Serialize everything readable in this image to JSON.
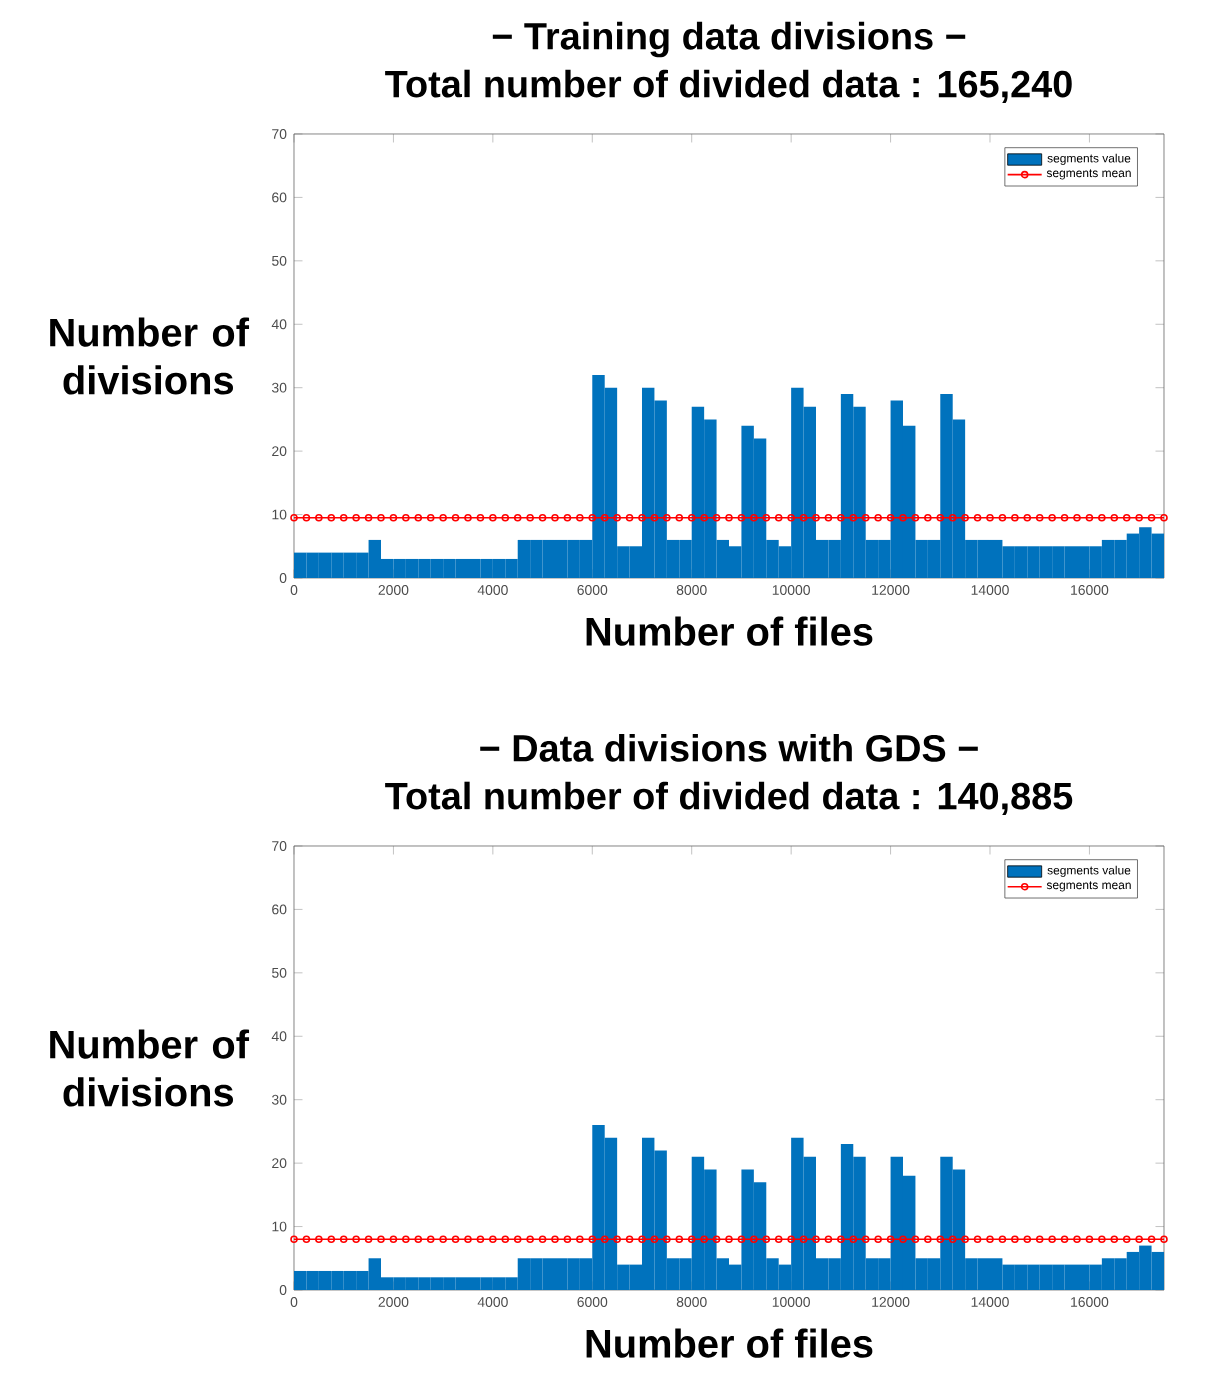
{
  "chart_data": [
    {
      "type": "bar",
      "title": "− Training data divisions −",
      "subtitle": "Total number of divided data : 165,240",
      "xlabel": "Number of files",
      "ylabel": "Number of divisions",
      "xlim": [
        0,
        17500
      ],
      "ylim": [
        0,
        70
      ],
      "xticks": [
        0,
        2000,
        4000,
        6000,
        8000,
        10000,
        12000,
        14000,
        16000
      ],
      "yticks": [
        0,
        10,
        20,
        30,
        40,
        50,
        60,
        70
      ],
      "legend": "top right",
      "series": [
        {
          "name": "segments value",
          "color": "#0072bd",
          "x": [
            125,
            375,
            625,
            875,
            1125,
            1375,
            1625,
            1875,
            2125,
            2375,
            2625,
            2875,
            3125,
            3375,
            3625,
            3875,
            4125,
            4375,
            4625,
            4875,
            5125,
            5375,
            5625,
            5875,
            6125,
            6375,
            6625,
            6875,
            7125,
            7375,
            7625,
            7875,
            8125,
            8375,
            8625,
            8875,
            9125,
            9375,
            9625,
            9875,
            10125,
            10375,
            10625,
            10875,
            11125,
            11375,
            11625,
            11875,
            12125,
            12375,
            12625,
            12875,
            13125,
            13375,
            13625,
            13875,
            14125,
            14375,
            14625,
            14875,
            15125,
            15375,
            15625,
            15875,
            16125,
            16375,
            16625,
            16875,
            17125,
            17375
          ],
          "values": [
            4,
            4,
            4,
            4,
            4,
            4,
            6,
            3,
            3,
            3,
            3,
            3,
            3,
            3,
            3,
            3,
            3,
            3,
            6,
            6,
            6,
            6,
            6,
            6,
            32,
            30,
            5,
            5,
            30,
            28,
            6,
            6,
            27,
            25,
            6,
            5,
            24,
            22,
            6,
            5,
            30,
            27,
            6,
            6,
            29,
            27,
            6,
            6,
            28,
            24,
            6,
            6,
            29,
            25,
            6,
            6,
            6,
            5,
            5,
            5,
            5,
            5,
            5,
            5,
            5,
            6,
            6,
            7,
            8,
            7
          ]
        },
        {
          "name": "segments mean",
          "type": "line",
          "color": "#ff0000",
          "marker": "circle",
          "x": [
            0,
            250,
            500,
            750,
            1000,
            1250,
            1500,
            1750,
            2000,
            2250,
            2500,
            2750,
            3000,
            3250,
            3500,
            3750,
            4000,
            4250,
            4500,
            4750,
            5000,
            5250,
            5500,
            5750,
            6000,
            6250,
            6500,
            6750,
            7000,
            7250,
            7500,
            7750,
            8000,
            8250,
            8500,
            8750,
            9000,
            9250,
            9500,
            9750,
            10000,
            10250,
            10500,
            10750,
            11000,
            11250,
            11500,
            11750,
            12000,
            12250,
            12500,
            12750,
            13000,
            13250,
            13500,
            13750,
            14000,
            14250,
            14500,
            14750,
            15000,
            15250,
            15500,
            15750,
            16000,
            16250,
            16500,
            16750,
            17000,
            17250,
            17500
          ],
          "values": [
            9.5,
            9.5,
            9.5,
            9.5,
            9.5,
            9.5,
            9.5,
            9.5,
            9.5,
            9.5,
            9.5,
            9.5,
            9.5,
            9.5,
            9.5,
            9.5,
            9.5,
            9.5,
            9.5,
            9.5,
            9.5,
            9.5,
            9.5,
            9.5,
            9.5,
            9.5,
            9.5,
            9.5,
            9.5,
            9.5,
            9.5,
            9.5,
            9.5,
            9.5,
            9.5,
            9.5,
            9.5,
            9.5,
            9.5,
            9.5,
            9.5,
            9.5,
            9.5,
            9.5,
            9.5,
            9.5,
            9.5,
            9.5,
            9.5,
            9.5,
            9.5,
            9.5,
            9.5,
            9.5,
            9.5,
            9.5,
            9.5,
            9.5,
            9.5,
            9.5,
            9.5,
            9.5,
            9.5,
            9.5,
            9.5,
            9.5,
            9.5,
            9.5,
            9.5,
            9.5,
            9.5
          ]
        }
      ]
    },
    {
      "type": "bar",
      "title": "− Data divisions with GDS −",
      "subtitle": "Total number of divided data : 140,885",
      "xlabel": "Number of files",
      "ylabel": "Number of divisions",
      "xlim": [
        0,
        17500
      ],
      "ylim": [
        0,
        70
      ],
      "xticks": [
        0,
        2000,
        4000,
        6000,
        8000,
        10000,
        12000,
        14000,
        16000
      ],
      "yticks": [
        0,
        10,
        20,
        30,
        40,
        50,
        60,
        70
      ],
      "legend": "top right",
      "series": [
        {
          "name": "segments value",
          "color": "#0072bd",
          "x": [
            125,
            375,
            625,
            875,
            1125,
            1375,
            1625,
            1875,
            2125,
            2375,
            2625,
            2875,
            3125,
            3375,
            3625,
            3875,
            4125,
            4375,
            4625,
            4875,
            5125,
            5375,
            5625,
            5875,
            6125,
            6375,
            6625,
            6875,
            7125,
            7375,
            7625,
            7875,
            8125,
            8375,
            8625,
            8875,
            9125,
            9375,
            9625,
            9875,
            10125,
            10375,
            10625,
            10875,
            11125,
            11375,
            11625,
            11875,
            12125,
            12375,
            12625,
            12875,
            13125,
            13375,
            13625,
            13875,
            14125,
            14375,
            14625,
            14875,
            15125,
            15375,
            15625,
            15875,
            16125,
            16375,
            16625,
            16875,
            17125,
            17375
          ],
          "values": [
            3,
            3,
            3,
            3,
            3,
            3,
            5,
            2,
            2,
            2,
            2,
            2,
            2,
            2,
            2,
            2,
            2,
            2,
            5,
            5,
            5,
            5,
            5,
            5,
            26,
            24,
            4,
            4,
            24,
            22,
            5,
            5,
            21,
            19,
            5,
            4,
            19,
            17,
            5,
            4,
            24,
            21,
            5,
            5,
            23,
            21,
            5,
            5,
            21,
            18,
            5,
            5,
            21,
            19,
            5,
            5,
            5,
            4,
            4,
            4,
            4,
            4,
            4,
            4,
            4,
            5,
            5,
            6,
            7,
            6
          ]
        },
        {
          "name": "segments mean",
          "type": "line",
          "color": "#ff0000",
          "marker": "circle",
          "x": [
            0,
            250,
            500,
            750,
            1000,
            1250,
            1500,
            1750,
            2000,
            2250,
            2500,
            2750,
            3000,
            3250,
            3500,
            3750,
            4000,
            4250,
            4500,
            4750,
            5000,
            5250,
            5500,
            5750,
            6000,
            6250,
            6500,
            6750,
            7000,
            7250,
            7500,
            7750,
            8000,
            8250,
            8500,
            8750,
            9000,
            9250,
            9500,
            9750,
            10000,
            10250,
            10500,
            10750,
            11000,
            11250,
            11500,
            11750,
            12000,
            12250,
            12500,
            12750,
            13000,
            13250,
            13500,
            13750,
            14000,
            14250,
            14500,
            14750,
            15000,
            15250,
            15500,
            15750,
            16000,
            16250,
            16500,
            16750,
            17000,
            17250,
            17500
          ],
          "values": [
            8,
            8,
            8,
            8,
            8,
            8,
            8,
            8,
            8,
            8,
            8,
            8,
            8,
            8,
            8,
            8,
            8,
            8,
            8,
            8,
            8,
            8,
            8,
            8,
            8,
            8,
            8,
            8,
            8,
            8,
            8,
            8,
            8,
            8,
            8,
            8,
            8,
            8,
            8,
            8,
            8,
            8,
            8,
            8,
            8,
            8,
            8,
            8,
            8,
            8,
            8,
            8,
            8,
            8,
            8,
            8,
            8,
            8,
            8,
            8,
            8,
            8,
            8,
            8,
            8,
            8,
            8,
            8,
            8,
            8,
            8
          ]
        }
      ]
    }
  ]
}
